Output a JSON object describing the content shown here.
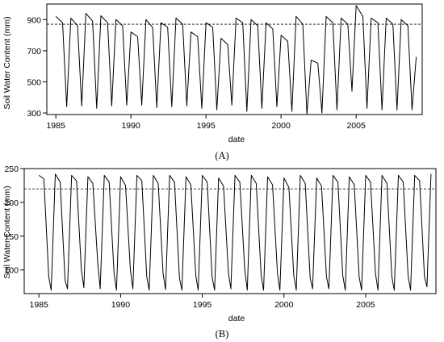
{
  "chart_data": [
    {
      "type": "line",
      "caption": "(A)",
      "xlabel": "date",
      "ylabel": "Soil Water Content (mm)",
      "xlim": [
        1984.4,
        2009.4
      ],
      "ylim": [
        290,
        1000
      ],
      "xticks": [
        1985,
        1990,
        1995,
        2000,
        2005
      ],
      "yticks": [
        300,
        500,
        700,
        900
      ],
      "grid": false,
      "reference_line": {
        "y": 870,
        "style": "dashed"
      },
      "series": [
        {
          "x": [
            1985.0,
            1985.45,
            1985.72,
            1986.0,
            1986.45,
            1986.72,
            1987.0,
            1987.45,
            1987.72,
            1988.0,
            1988.45,
            1988.72,
            1989.0,
            1989.45,
            1989.72,
            1990.0,
            1990.45,
            1990.72,
            1991.0,
            1991.45,
            1991.72,
            1992.0,
            1992.45,
            1992.72,
            1993.0,
            1993.45,
            1993.72,
            1994.0,
            1994.45,
            1994.72,
            1995.0,
            1995.45,
            1995.72,
            1996.0,
            1996.45,
            1996.72,
            1997.0,
            1997.45,
            1997.72,
            1998.0,
            1998.45,
            1998.72,
            1999.0,
            1999.45,
            1999.72,
            2000.0,
            2000.45,
            2000.72,
            2001.0,
            2001.45,
            2001.72,
            2002.0,
            2002.45,
            2002.72,
            2003.0,
            2003.45,
            2003.72,
            2004.0,
            2004.45,
            2004.72,
            2005.0,
            2005.45,
            2005.72,
            2006.0,
            2006.45,
            2006.72,
            2007.0,
            2007.45,
            2007.72,
            2008.0,
            2008.45,
            2008.72,
            2009.0
          ],
          "y": [
            920,
            880,
            340,
            910,
            860,
            345,
            940,
            890,
            330,
            925,
            880,
            345,
            900,
            860,
            350,
            820,
            790,
            350,
            900,
            850,
            335,
            880,
            850,
            340,
            910,
            870,
            345,
            820,
            790,
            330,
            880,
            850,
            320,
            780,
            740,
            350,
            910,
            880,
            310,
            900,
            860,
            330,
            880,
            840,
            340,
            800,
            760,
            310,
            920,
            870,
            290,
            640,
            620,
            300,
            920,
            880,
            320,
            910,
            870,
            440,
            990,
            920,
            330,
            910,
            880,
            320,
            910,
            870,
            320,
            900,
            860,
            320,
            660
          ]
        }
      ]
    },
    {
      "type": "line",
      "caption": "(B)",
      "xlabel": "date",
      "ylabel": "Soil Water Content (mm)",
      "xlim": [
        1984.1,
        2009.3
      ],
      "ylim": [
        65,
        250
      ],
      "xticks": [
        1985,
        1990,
        1995,
        2000,
        2005
      ],
      "yticks": [
        100,
        150,
        200,
        250
      ],
      "grid": false,
      "reference_line": {
        "y": 220,
        "style": "dashed"
      },
      "series": [
        {
          "x": [
            1985.0,
            1985.3,
            1985.6,
            1985.75,
            1986.0,
            1986.3,
            1986.6,
            1986.75,
            1987.0,
            1987.3,
            1987.6,
            1987.75,
            1988.0,
            1988.3,
            1988.6,
            1988.75,
            1989.0,
            1989.3,
            1989.6,
            1989.75,
            1990.0,
            1990.3,
            1990.6,
            1990.75,
            1991.0,
            1991.3,
            1991.6,
            1991.75,
            1992.0,
            1992.3,
            1992.6,
            1992.75,
            1993.0,
            1993.3,
            1993.6,
            1993.75,
            1994.0,
            1994.3,
            1994.6,
            1994.75,
            1995.0,
            1995.3,
            1995.6,
            1995.75,
            1996.0,
            1996.3,
            1996.6,
            1996.75,
            1997.0,
            1997.3,
            1997.6,
            1997.75,
            1998.0,
            1998.3,
            1998.6,
            1998.75,
            1999.0,
            1999.3,
            1999.6,
            1999.75,
            2000.0,
            2000.3,
            2000.6,
            2000.75,
            2001.0,
            2001.3,
            2001.6,
            2001.75,
            2002.0,
            2002.3,
            2002.6,
            2002.75,
            2003.0,
            2003.3,
            2003.6,
            2003.75,
            2004.0,
            2004.3,
            2004.6,
            2004.75,
            2005.0,
            2005.3,
            2005.6,
            2005.75,
            2006.0,
            2006.3,
            2006.6,
            2006.75,
            2007.0,
            2007.3,
            2007.6,
            2007.75,
            2008.0,
            2008.3,
            2008.6,
            2008.75,
            2009.0
          ],
          "y": [
            240,
            235,
            90,
            70,
            242,
            230,
            85,
            72,
            240,
            232,
            100,
            74,
            238,
            228,
            110,
            72,
            240,
            230,
            95,
            70,
            238,
            225,
            100,
            72,
            240,
            232,
            90,
            70,
            240,
            228,
            95,
            71,
            240,
            230,
            88,
            70,
            238,
            226,
            92,
            70,
            240,
            230,
            90,
            70,
            236,
            224,
            95,
            72,
            240,
            230,
            100,
            70,
            240,
            228,
            92,
            70,
            238,
            226,
            95,
            70,
            236,
            222,
            92,
            70,
            240,
            228,
            88,
            72,
            236,
            224,
            90,
            72,
            240,
            230,
            92,
            70,
            238,
            226,
            90,
            70,
            240,
            230,
            95,
            70,
            240,
            228,
            90,
            70,
            240,
            230,
            90,
            70,
            240,
            232,
            90,
            75,
            242
          ]
        }
      ]
    }
  ]
}
